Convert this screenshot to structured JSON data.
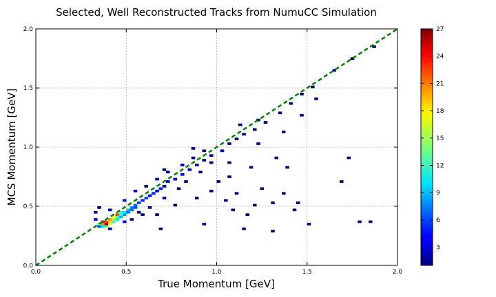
{
  "chart_data": {
    "type": "heatmap",
    "title": "Selected, Well Reconstructed Tracks from NumuCC Simulation",
    "xlabel": "True Momentum [GeV]",
    "ylabel": "MCS Momentum [GeV]",
    "xlim": [
      0.0,
      2.0
    ],
    "ylim": [
      0.0,
      2.0
    ],
    "xticks": [
      "0.0",
      "0.5",
      "1.0",
      "1.5",
      "2.0"
    ],
    "yticks": [
      "0.0",
      "0.5",
      "1.0",
      "1.5",
      "2.0"
    ],
    "grid": true,
    "bin_width_gev": 0.02,
    "diagonal": {
      "x": [
        0.0,
        2.0
      ],
      "y": [
        0.0,
        2.0
      ],
      "color": "#008000",
      "style": "dashed"
    },
    "colorbar": {
      "min": 1,
      "max": 27,
      "ticks": [
        "3",
        "6",
        "9",
        "12",
        "15",
        "18",
        "21",
        "24",
        "27"
      ],
      "colormap": "jet"
    },
    "bins": [
      [
        0.34,
        0.32,
        6
      ],
      [
        0.36,
        0.32,
        10
      ],
      [
        0.38,
        0.32,
        14
      ],
      [
        0.34,
        0.34,
        12
      ],
      [
        0.36,
        0.34,
        20
      ],
      [
        0.38,
        0.34,
        27
      ],
      [
        0.4,
        0.34,
        16
      ],
      [
        0.36,
        0.36,
        24
      ],
      [
        0.38,
        0.36,
        22
      ],
      [
        0.4,
        0.36,
        18
      ],
      [
        0.42,
        0.36,
        12
      ],
      [
        0.4,
        0.38,
        20
      ],
      [
        0.42,
        0.38,
        15
      ],
      [
        0.44,
        0.38,
        10
      ],
      [
        0.42,
        0.4,
        17
      ],
      [
        0.44,
        0.4,
        13
      ],
      [
        0.46,
        0.4,
        9
      ],
      [
        0.44,
        0.42,
        22
      ],
      [
        0.46,
        0.42,
        12
      ],
      [
        0.48,
        0.42,
        8
      ],
      [
        0.46,
        0.44,
        11
      ],
      [
        0.48,
        0.44,
        10
      ],
      [
        0.5,
        0.44,
        7
      ],
      [
        0.5,
        0.46,
        9
      ],
      [
        0.52,
        0.46,
        7
      ],
      [
        0.52,
        0.48,
        8
      ],
      [
        0.54,
        0.48,
        6
      ],
      [
        0.54,
        0.5,
        7
      ],
      [
        0.56,
        0.52,
        6
      ],
      [
        0.58,
        0.54,
        5
      ],
      [
        0.6,
        0.56,
        6
      ],
      [
        0.62,
        0.58,
        4
      ],
      [
        0.64,
        0.6,
        5
      ],
      [
        0.66,
        0.62,
        4
      ],
      [
        0.68,
        0.64,
        5
      ],
      [
        0.7,
        0.66,
        3
      ],
      [
        0.72,
        0.7,
        4
      ],
      [
        0.76,
        0.72,
        3
      ],
      [
        0.8,
        0.76,
        3
      ],
      [
        0.84,
        0.8,
        3
      ],
      [
        0.88,
        0.84,
        2
      ],
      [
        0.92,
        0.88,
        2
      ],
      [
        0.96,
        0.92,
        2
      ],
      [
        1.02,
        0.96,
        2
      ],
      [
        1.06,
        1.02,
        2
      ],
      [
        1.1,
        1.06,
        1
      ],
      [
        1.14,
        1.1,
        1
      ],
      [
        1.2,
        1.14,
        1
      ],
      [
        1.26,
        1.2,
        1
      ],
      [
        1.34,
        1.28,
        1
      ],
      [
        1.4,
        1.36,
        1
      ],
      [
        1.46,
        1.44,
        1
      ],
      [
        1.52,
        1.5,
        1
      ],
      [
        1.64,
        1.64,
        1
      ],
      [
        1.74,
        1.74,
        1
      ],
      [
        1.86,
        1.84,
        1
      ],
      [
        0.32,
        0.38,
        3
      ],
      [
        0.32,
        0.44,
        2
      ],
      [
        0.34,
        0.48,
        1
      ],
      [
        0.4,
        0.46,
        3
      ],
      [
        0.52,
        0.38,
        2
      ],
      [
        0.58,
        0.42,
        1
      ],
      [
        0.4,
        0.3,
        2
      ],
      [
        0.48,
        0.36,
        3
      ],
      [
        0.56,
        0.44,
        2
      ],
      [
        0.62,
        0.48,
        1
      ],
      [
        0.7,
        0.56,
        2
      ],
      [
        0.78,
        0.64,
        1
      ],
      [
        0.48,
        0.54,
        2
      ],
      [
        0.54,
        0.62,
        2
      ],
      [
        0.6,
        0.66,
        1
      ],
      [
        0.66,
        0.72,
        2
      ],
      [
        0.72,
        0.78,
        1
      ],
      [
        0.8,
        0.84,
        2
      ],
      [
        0.86,
        0.9,
        1
      ],
      [
        0.92,
        0.96,
        1
      ],
      [
        0.82,
        0.7,
        1
      ],
      [
        0.9,
        0.78,
        1
      ],
      [
        0.96,
        0.86,
        1
      ],
      [
        0.7,
        0.8,
        1
      ],
      [
        1.0,
        0.7,
        1
      ],
      [
        1.06,
        0.74,
        1
      ],
      [
        1.04,
        0.54,
        1
      ],
      [
        1.08,
        0.46,
        1
      ],
      [
        1.1,
        0.6,
        1
      ],
      [
        1.16,
        0.42,
        1
      ],
      [
        1.2,
        0.5,
        1
      ],
      [
        1.24,
        0.64,
        1
      ],
      [
        1.3,
        0.52,
        1
      ],
      [
        1.36,
        0.6,
        1
      ],
      [
        1.42,
        0.46,
        1
      ],
      [
        1.44,
        0.52,
        1
      ],
      [
        1.38,
        0.82,
        1
      ],
      [
        1.32,
        0.9,
        1
      ],
      [
        1.18,
        0.82,
        1
      ],
      [
        1.06,
        0.86,
        1
      ],
      [
        0.88,
        0.56,
        1
      ],
      [
        0.76,
        0.5,
        1
      ],
      [
        0.66,
        0.42,
        1
      ],
      [
        0.92,
        0.34,
        1
      ],
      [
        1.3,
        0.28,
        1
      ],
      [
        1.5,
        0.34,
        1
      ],
      [
        1.68,
        0.7,
        1
      ],
      [
        1.78,
        0.36,
        1
      ],
      [
        1.72,
        0.9,
        1
      ],
      [
        1.84,
        0.36,
        1
      ],
      [
        1.54,
        1.4,
        1
      ],
      [
        1.46,
        1.26,
        1
      ],
      [
        1.36,
        1.12,
        1
      ],
      [
        1.22,
        1.02,
        1
      ],
      [
        1.12,
        1.18,
        1
      ],
      [
        1.22,
        1.22,
        1
      ],
      [
        0.86,
        0.98,
        1
      ],
      [
        0.68,
        0.3,
        1
      ],
      [
        1.14,
        0.3,
        1
      ],
      [
        0.96,
        0.62,
        1
      ]
    ]
  }
}
